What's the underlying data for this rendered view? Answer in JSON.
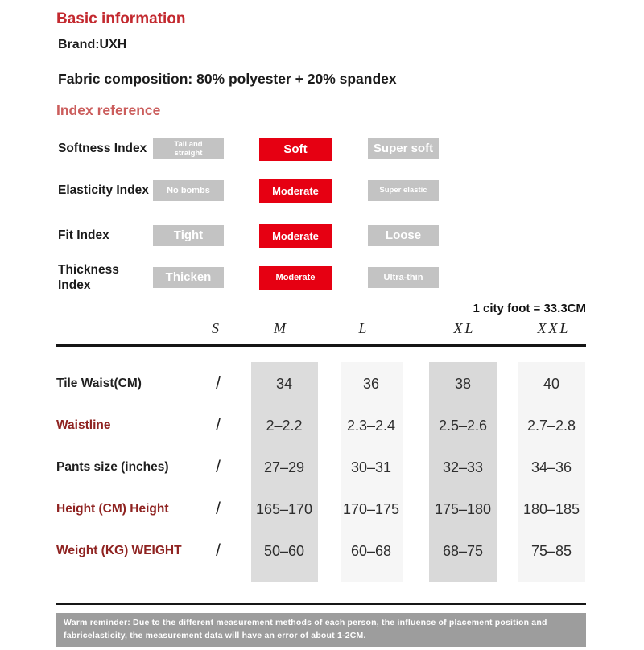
{
  "colors": {
    "accent_red": "#e60012",
    "chip_gray": "#c3c3c3",
    "heading_crimson": "#c3292f",
    "heading_soft_red": "#cb5d5c",
    "label_dark_red": "#8f2321",
    "reminder_gray": "#9d9d9d"
  },
  "basic_info": {
    "title": "Basic information",
    "brand": "Brand:UXH",
    "fabric": "Fabric composition: 80% polyester + 20% spandex"
  },
  "index_reference": {
    "title": "Index reference",
    "rows": [
      {
        "label": "Softness Index",
        "options": [
          {
            "label": "Tall and straight",
            "selected": false,
            "size": "xs",
            "two_line": true
          },
          {
            "label": "Soft",
            "selected": true,
            "size": "md",
            "two_line": false
          },
          {
            "label": "Super soft",
            "selected": false,
            "size": "md",
            "two_line": false
          }
        ]
      },
      {
        "label": "Elasticity Index",
        "options": [
          {
            "label": "No bombs",
            "selected": false,
            "size": "sm",
            "two_line": false
          },
          {
            "label": "Moderate",
            "selected": true,
            "size": "mm",
            "two_line": false
          },
          {
            "label": "Super elastic",
            "selected": false,
            "size": "xs",
            "two_line": true
          }
        ]
      },
      {
        "label": "Fit Index",
        "options": [
          {
            "label": "Tight",
            "selected": false,
            "size": "md",
            "two_line": false
          },
          {
            "label": "Moderate",
            "selected": true,
            "size": "mm",
            "two_line": false
          },
          {
            "label": "Loose",
            "selected": false,
            "size": "md",
            "two_line": false
          }
        ]
      },
      {
        "label": "Thickness Index",
        "options": [
          {
            "label": "Thicken",
            "selected": false,
            "size": "md",
            "two_line": false
          },
          {
            "label": "Moderate",
            "selected": true,
            "size": "sm",
            "two_line": false
          },
          {
            "label": "Ultra-thin",
            "selected": false,
            "size": "sm",
            "two_line": false
          }
        ]
      }
    ]
  },
  "size_table": {
    "note": "1 city foot = 33.3CM",
    "columns": [
      "S",
      "M",
      "L",
      "XL",
      "XXL"
    ],
    "rows": [
      {
        "label": "Tile Waist(CM)",
        "label_color": "dark",
        "values": [
          "/",
          "34",
          "36",
          "38",
          "40"
        ]
      },
      {
        "label": "Waistline",
        "label_color": "red",
        "values": [
          "/",
          "2–2.2",
          "2.3–2.4",
          "2.5–2.6",
          "2.7–2.8"
        ]
      },
      {
        "label": "Pants size (inches)",
        "label_color": "dark",
        "values": [
          "/",
          "27–29",
          "30–31",
          "32–33",
          "34–36"
        ]
      },
      {
        "label": "Height (CM) Height",
        "label_color": "red",
        "values": [
          "/",
          "165–170",
          "170–175",
          "175–180",
          "180–185"
        ]
      },
      {
        "label": "Weight (KG) WEIGHT",
        "label_color": "red",
        "values": [
          "/",
          "50–60",
          "60–68",
          "68–75",
          "75–85"
        ]
      }
    ]
  },
  "reminder": {
    "text": "Warm reminder: Due to the different measurement methods of each person, the influence of placement position and fabricelasticity, the measurement data will have an error of about 1-2CM."
  }
}
